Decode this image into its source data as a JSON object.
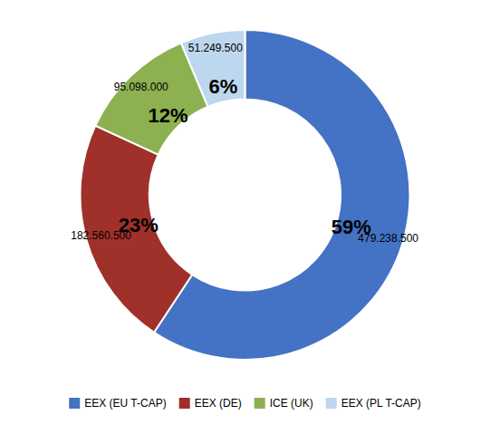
{
  "chart_data": {
    "type": "donut",
    "categories": [
      "EEX (EU T-CAP)",
      "EEX (DE)",
      "ICE (UK)",
      "EEX (PL T-CAP)"
    ],
    "values": [
      479238500,
      182560500,
      95098000,
      51249500
    ],
    "value_labels": [
      "479.238.500",
      "182.560.500",
      "95.098.000",
      "51.249.500"
    ],
    "percentage_labels": [
      "59%",
      "23%",
      "12%",
      "6%"
    ],
    "colors": [
      "#4472C4",
      "#A0302A",
      "#8DB050",
      "#BDD7EE"
    ],
    "data_labels": true,
    "legend": "bottom"
  }
}
